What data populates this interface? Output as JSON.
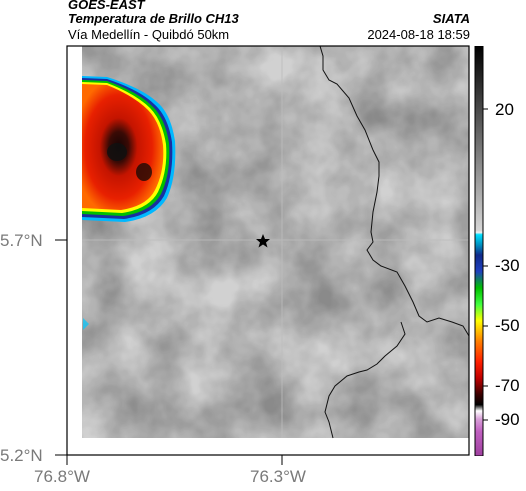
{
  "header": {
    "satellite": "GOES-EAST",
    "product": "Temperatura de Brillo CH13",
    "route": "Vía Medellín - Quibdó 50km",
    "brand": "SIATA",
    "datetime": "2024-08-18 18:59"
  },
  "axes": {
    "latitude_labels": [
      "5.7°N",
      "5.2°N"
    ],
    "longitude_labels": [
      "76.8°W",
      "76.3°W"
    ]
  },
  "colorbar": {
    "labels": [
      "20",
      "-30",
      "-50",
      "-70",
      "-90"
    ]
  },
  "marker": {
    "name": "star-marker"
  },
  "colors": {
    "cold_core": "#1a1a1a",
    "cold_red": "#e01a00",
    "cold_orange": "#ff5a00",
    "ring_yellow": "#ffff00",
    "ring_green": "#00c000",
    "ring_blue": "#003cb4"
  }
}
